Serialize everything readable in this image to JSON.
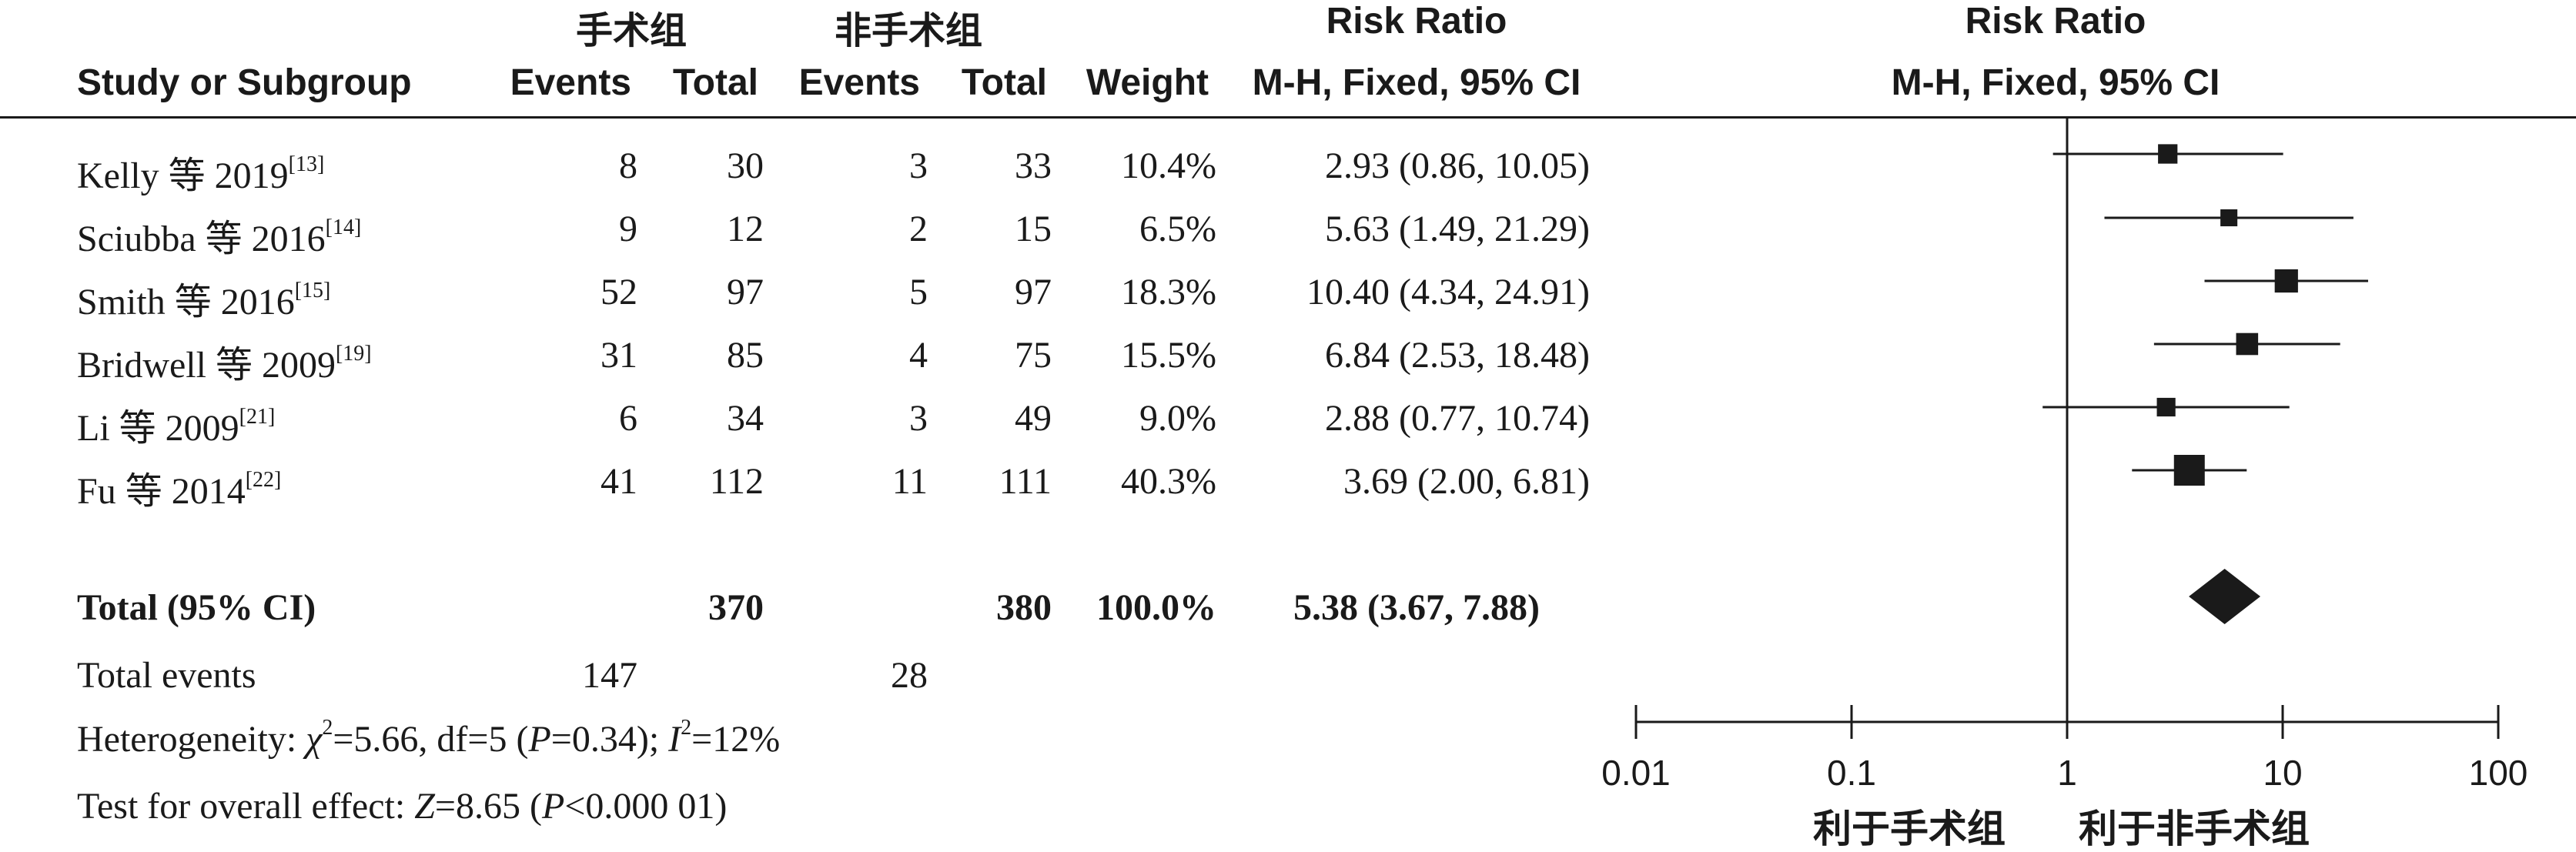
{
  "header": {
    "group1": "手术组",
    "group2": "非手术组",
    "rr_title": "Risk Ratio",
    "study_col": "Study or Subgroup",
    "events1": "Events",
    "total1": "Total",
    "events2": "Events",
    "total2": "Total",
    "weight": "Weight",
    "rr_method": "M-H, Fixed, 95% CI",
    "plot_title": "Risk Ratio",
    "plot_method": "M-H, Fixed, 95% CI"
  },
  "studies": [
    {
      "name": "Kelly 等 2019",
      "ref": "[13]",
      "e1": "8",
      "t1": "30",
      "e2": "3",
      "t2": "33",
      "weight": "10.4%",
      "ci": "2.93 (0.86, 10.05)"
    },
    {
      "name": "Sciubba 等 2016",
      "ref": "[14]",
      "e1": "9",
      "t1": "12",
      "e2": "2",
      "t2": "15",
      "weight": "6.5%",
      "ci": "5.63 (1.49, 21.29)"
    },
    {
      "name": "Smith 等 2016",
      "ref": "[15]",
      "e1": "52",
      "t1": "97",
      "e2": "5",
      "t2": "97",
      "weight": "18.3%",
      "ci": "10.40 (4.34, 24.91)"
    },
    {
      "name": "Bridwell 等 2009",
      "ref": "[19]",
      "e1": "31",
      "t1": "85",
      "e2": "4",
      "t2": "75",
      "weight": "15.5%",
      "ci": "6.84 (2.53, 18.48)"
    },
    {
      "name": "Li 等 2009",
      "ref": "[21]",
      "e1": "6",
      "t1": "34",
      "e2": "3",
      "t2": "49",
      "weight": "9.0%",
      "ci": "2.88 (0.77, 10.74)"
    },
    {
      "name": "Fu 等 2014",
      "ref": "[22]",
      "e1": "41",
      "t1": "112",
      "e2": "11",
      "t2": "111",
      "weight": "40.3%",
      "ci": "3.69 (2.00, 6.81)"
    }
  ],
  "total": {
    "label": "Total (95% CI)",
    "t1": "370",
    "t2": "380",
    "weight": "100.0%",
    "ci": "5.38 (3.67, 7.88)"
  },
  "events_row": {
    "label": "Total events",
    "e1": "147",
    "e2": "28"
  },
  "heterogeneity": {
    "prefix": "Heterogeneity: ",
    "chi_symbol": "χ",
    "chi_value": "=5.66, df=5 (",
    "p_symbol": "P",
    "p_value": "=0.34); ",
    "i_symbol": "I",
    "i_value": "=12%"
  },
  "overall": {
    "prefix": "Test for overall effect: ",
    "z_symbol": "Z",
    "z_value": "=8.65 (",
    "p_symbol": "P",
    "p_value": "<0.000 01)"
  },
  "axis": {
    "ticks": [
      "0.01",
      "0.1",
      "1",
      "10",
      "100"
    ],
    "favours_left": "利于手术组",
    "favours_right": "利于非手术组"
  },
  "chart_data": {
    "type": "forest",
    "scale": "log",
    "xlim": [
      0.01,
      100
    ],
    "reference_line": 1,
    "studies": [
      {
        "name": "Kelly 等 2019",
        "rr": 2.93,
        "lower": 0.86,
        "upper": 10.05,
        "weight": 10.4
      },
      {
        "name": "Sciubba 等 2016",
        "rr": 5.63,
        "lower": 1.49,
        "upper": 21.29,
        "weight": 6.5
      },
      {
        "name": "Smith 等 2016",
        "rr": 10.4,
        "lower": 4.34,
        "upper": 24.91,
        "weight": 18.3
      },
      {
        "name": "Bridwell 等 2009",
        "rr": 6.84,
        "lower": 2.53,
        "upper": 18.48,
        "weight": 15.5
      },
      {
        "name": "Li 等 2009",
        "rr": 2.88,
        "lower": 0.77,
        "upper": 10.74,
        "weight": 9.0
      },
      {
        "name": "Fu 等 2014",
        "rr": 3.69,
        "lower": 2.0,
        "upper": 6.81,
        "weight": 40.3
      }
    ],
    "pooled": {
      "rr": 5.38,
      "lower": 3.67,
      "upper": 7.88
    },
    "marker_color": "#1a1a1a"
  }
}
